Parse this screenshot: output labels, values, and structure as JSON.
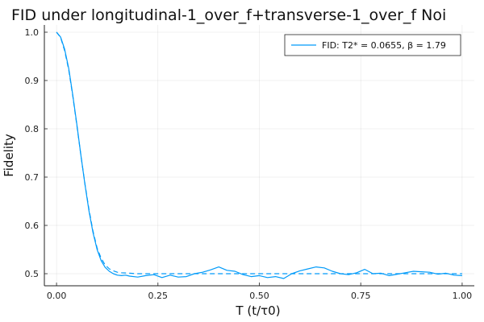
{
  "chart_data": {
    "type": "line",
    "title": "FID under longitudinal-1_over_f+transverse-1_over_f Noi",
    "xlabel": "T (t/τ0)",
    "ylabel": "Fidelity",
    "xlim": [
      -0.03,
      1.03
    ],
    "ylim": [
      0.475,
      1.015
    ],
    "xticks": [
      0.0,
      0.25,
      0.5,
      0.75,
      1.0
    ],
    "xtick_labels": [
      "0.00",
      "0.25",
      "0.50",
      "0.75",
      "1.00"
    ],
    "yticks": [
      0.5,
      0.6,
      0.7,
      0.8,
      0.9,
      1.0
    ],
    "ytick_labels": [
      "0.5",
      "0.6",
      "0.7",
      "0.8",
      "0.9",
      "1.0"
    ],
    "grid": true,
    "legend_position": "top-right",
    "color": "#009af9",
    "series": [
      {
        "name": "FID: T2* = 0.0655, β = 1.79",
        "style": "solid",
        "x": [
          0.0,
          0.01,
          0.02,
          0.03,
          0.04,
          0.05,
          0.06,
          0.07,
          0.08,
          0.09,
          0.1,
          0.11,
          0.12,
          0.13,
          0.14,
          0.15,
          0.16,
          0.17,
          0.18,
          0.2,
          0.22,
          0.24,
          0.26,
          0.28,
          0.3,
          0.32,
          0.34,
          0.36,
          0.38,
          0.4,
          0.42,
          0.44,
          0.46,
          0.48,
          0.5,
          0.52,
          0.54,
          0.56,
          0.58,
          0.6,
          0.62,
          0.64,
          0.66,
          0.68,
          0.7,
          0.72,
          0.74,
          0.76,
          0.78,
          0.8,
          0.82,
          0.84,
          0.86,
          0.88,
          0.9,
          0.92,
          0.94,
          0.96,
          0.98,
          1.0
        ],
        "y": [
          1.0,
          0.99,
          0.965,
          0.925,
          0.87,
          0.81,
          0.745,
          0.685,
          0.63,
          0.585,
          0.55,
          0.527,
          0.513,
          0.505,
          0.5,
          0.497,
          0.496,
          0.497,
          0.495,
          0.493,
          0.496,
          0.498,
          0.492,
          0.497,
          0.493,
          0.494,
          0.5,
          0.503,
          0.508,
          0.514,
          0.507,
          0.505,
          0.498,
          0.494,
          0.496,
          0.492,
          0.494,
          0.49,
          0.5,
          0.506,
          0.51,
          0.514,
          0.512,
          0.505,
          0.5,
          0.498,
          0.502,
          0.509,
          0.5,
          0.501,
          0.496,
          0.499,
          0.502,
          0.505,
          0.504,
          0.503,
          0.499,
          0.501,
          0.497,
          0.496
        ]
      },
      {
        "name": "",
        "style": "dashed",
        "x": [
          0.0,
          0.01,
          0.02,
          0.03,
          0.04,
          0.05,
          0.06,
          0.07,
          0.08,
          0.09,
          0.1,
          0.11,
          0.12,
          0.13,
          0.14,
          0.15,
          0.16,
          0.18,
          0.2,
          0.3,
          0.4,
          0.5,
          0.6,
          0.7,
          0.8,
          0.9,
          1.0
        ],
        "y": [
          1.0,
          0.989,
          0.962,
          0.922,
          0.868,
          0.808,
          0.745,
          0.686,
          0.633,
          0.588,
          0.553,
          0.532,
          0.518,
          0.51,
          0.506,
          0.503,
          0.502,
          0.501,
          0.5,
          0.5,
          0.5,
          0.5,
          0.5,
          0.5,
          0.5,
          0.5,
          0.5
        ]
      }
    ]
  }
}
